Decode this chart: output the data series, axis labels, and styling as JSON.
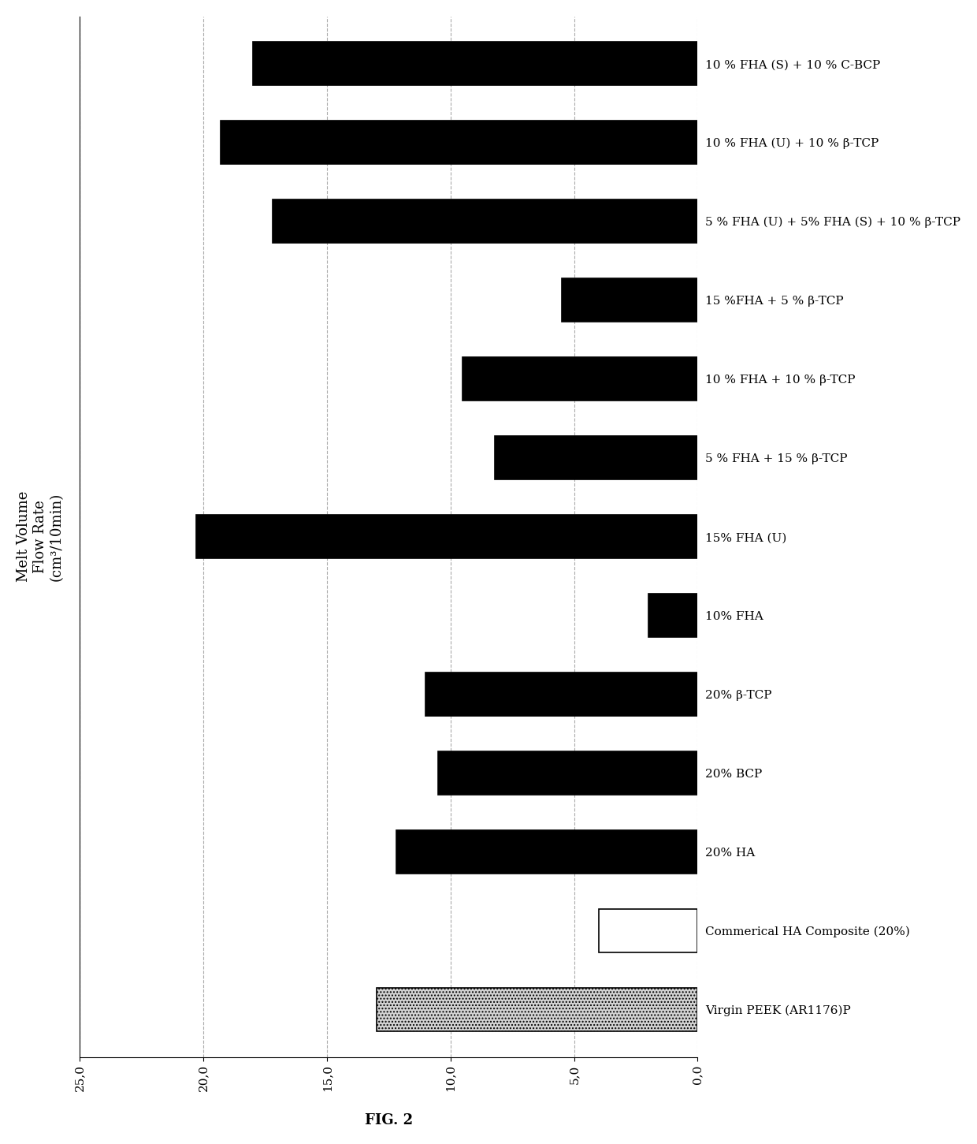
{
  "categories_top_to_bottom": [
    "10 % FHA (S) + 10 % C-BCP",
    "10 % FHA (U) + 10 % β-TCP",
    "5 % FHA (U) + 5% FHA (S) + 10 % β-TCP",
    "15 %FHA + 5 % β-TCP",
    "10 % FHA + 10 % β-TCP",
    "5 % FHA + 15 % β-TCP",
    "15% FHA (U)",
    "10% FHA",
    "20% β-TCP",
    "20% BCP",
    "20% HA",
    "Commerical HA Composite (20%)",
    "Virgin PEEK (AR1176)P"
  ],
  "values_top_to_bottom": [
    18.0,
    19.3,
    17.2,
    5.5,
    9.5,
    8.2,
    20.3,
    2.0,
    11.0,
    10.5,
    12.2,
    4.0,
    13.0
  ],
  "bar_colors": [
    "black",
    "black",
    "black",
    "black",
    "black",
    "black",
    "black",
    "black",
    "black",
    "black",
    "black",
    "white",
    "lightgray"
  ],
  "bar_edge_colors": [
    "black",
    "black",
    "black",
    "black",
    "black",
    "black",
    "black",
    "black",
    "black",
    "black",
    "black",
    "black",
    "black"
  ],
  "bar_hatches": [
    null,
    null,
    null,
    null,
    null,
    null,
    null,
    null,
    null,
    null,
    null,
    null,
    "...."
  ],
  "xlabel": "FIG. 2",
  "ylabel_lines": [
    "Melt Volume",
    "Flow Rate",
    "(cm³/10min)"
  ],
  "xlim_left": 25,
  "xlim_right": 0,
  "xticks": [
    25,
    20,
    15,
    10,
    5,
    0
  ],
  "xtick_labels": [
    "25,0",
    "20,0",
    "15,0",
    "10,0",
    "5,0",
    "0,0"
  ],
  "label_fontsize": 11,
  "ylabel_fontsize": 13,
  "tick_fontsize": 11,
  "bar_height": 0.55,
  "figure_width": 12.4,
  "figure_height": 14.51,
  "background_color": "white",
  "grid_color": "#aaaaaa",
  "grid_style": "--"
}
